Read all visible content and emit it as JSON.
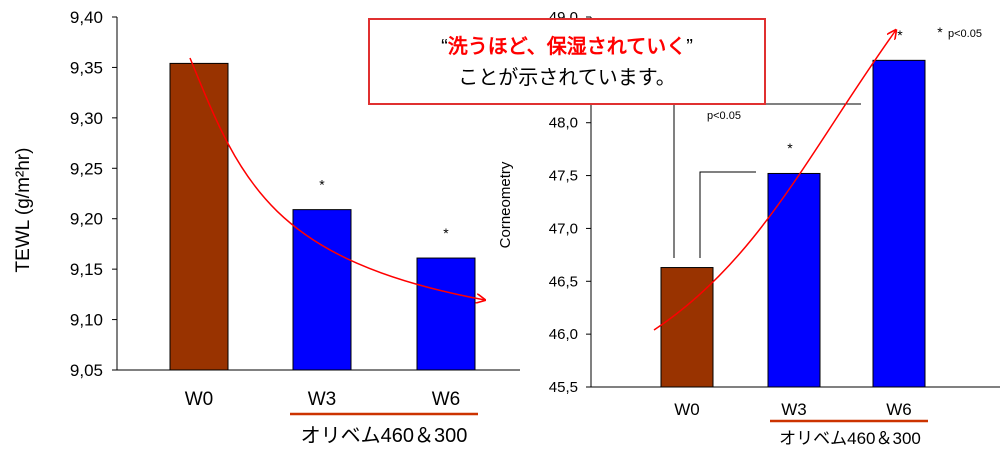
{
  "chart_data": [
    {
      "type": "bar",
      "categories": [
        "W0",
        "W3",
        "W6"
      ],
      "values": [
        9.354,
        9.209,
        9.161
      ],
      "colors": [
        "#993300",
        "#0000ff",
        "#0000ff"
      ],
      "ylabel": "TEWL (g/m²hr)",
      "ylim": [
        9.05,
        9.4
      ],
      "yticks": [
        "9,40",
        "9,35",
        "9,30",
        "9,25",
        "9,20",
        "9,15",
        "9,10",
        "9,05"
      ],
      "significance": [
        "",
        "*",
        "*"
      ],
      "group_label": "オリベム460＆300",
      "grid": false
    },
    {
      "type": "bar",
      "categories": [
        "W0",
        "W3",
        "W6"
      ],
      "values": [
        46.63,
        47.52,
        48.59
      ],
      "colors": [
        "#993300",
        "#0000ff",
        "#0000ff"
      ],
      "ylabel": "Corneometry",
      "ylim": [
        45.5,
        49.0
      ],
      "yticks": [
        "49,0",
        "48,0",
        "47,5",
        "47,0",
        "46,5",
        "46,0",
        "45,5"
      ],
      "significance": [
        "",
        "*",
        "*"
      ],
      "p_labels": [
        "p<0.05",
        "p<0.05"
      ],
      "group_label": "オリベム460＆300",
      "grid": false
    }
  ],
  "callout": {
    "quote_open": "“",
    "highlight": "洗うほど、保湿されていく",
    "quote_close": "”",
    "line2": "ことが示されています。"
  },
  "colors": {
    "brown": "#993300",
    "blue": "#0000ff",
    "red": "#ff0000",
    "callout_border": "#e03030"
  }
}
